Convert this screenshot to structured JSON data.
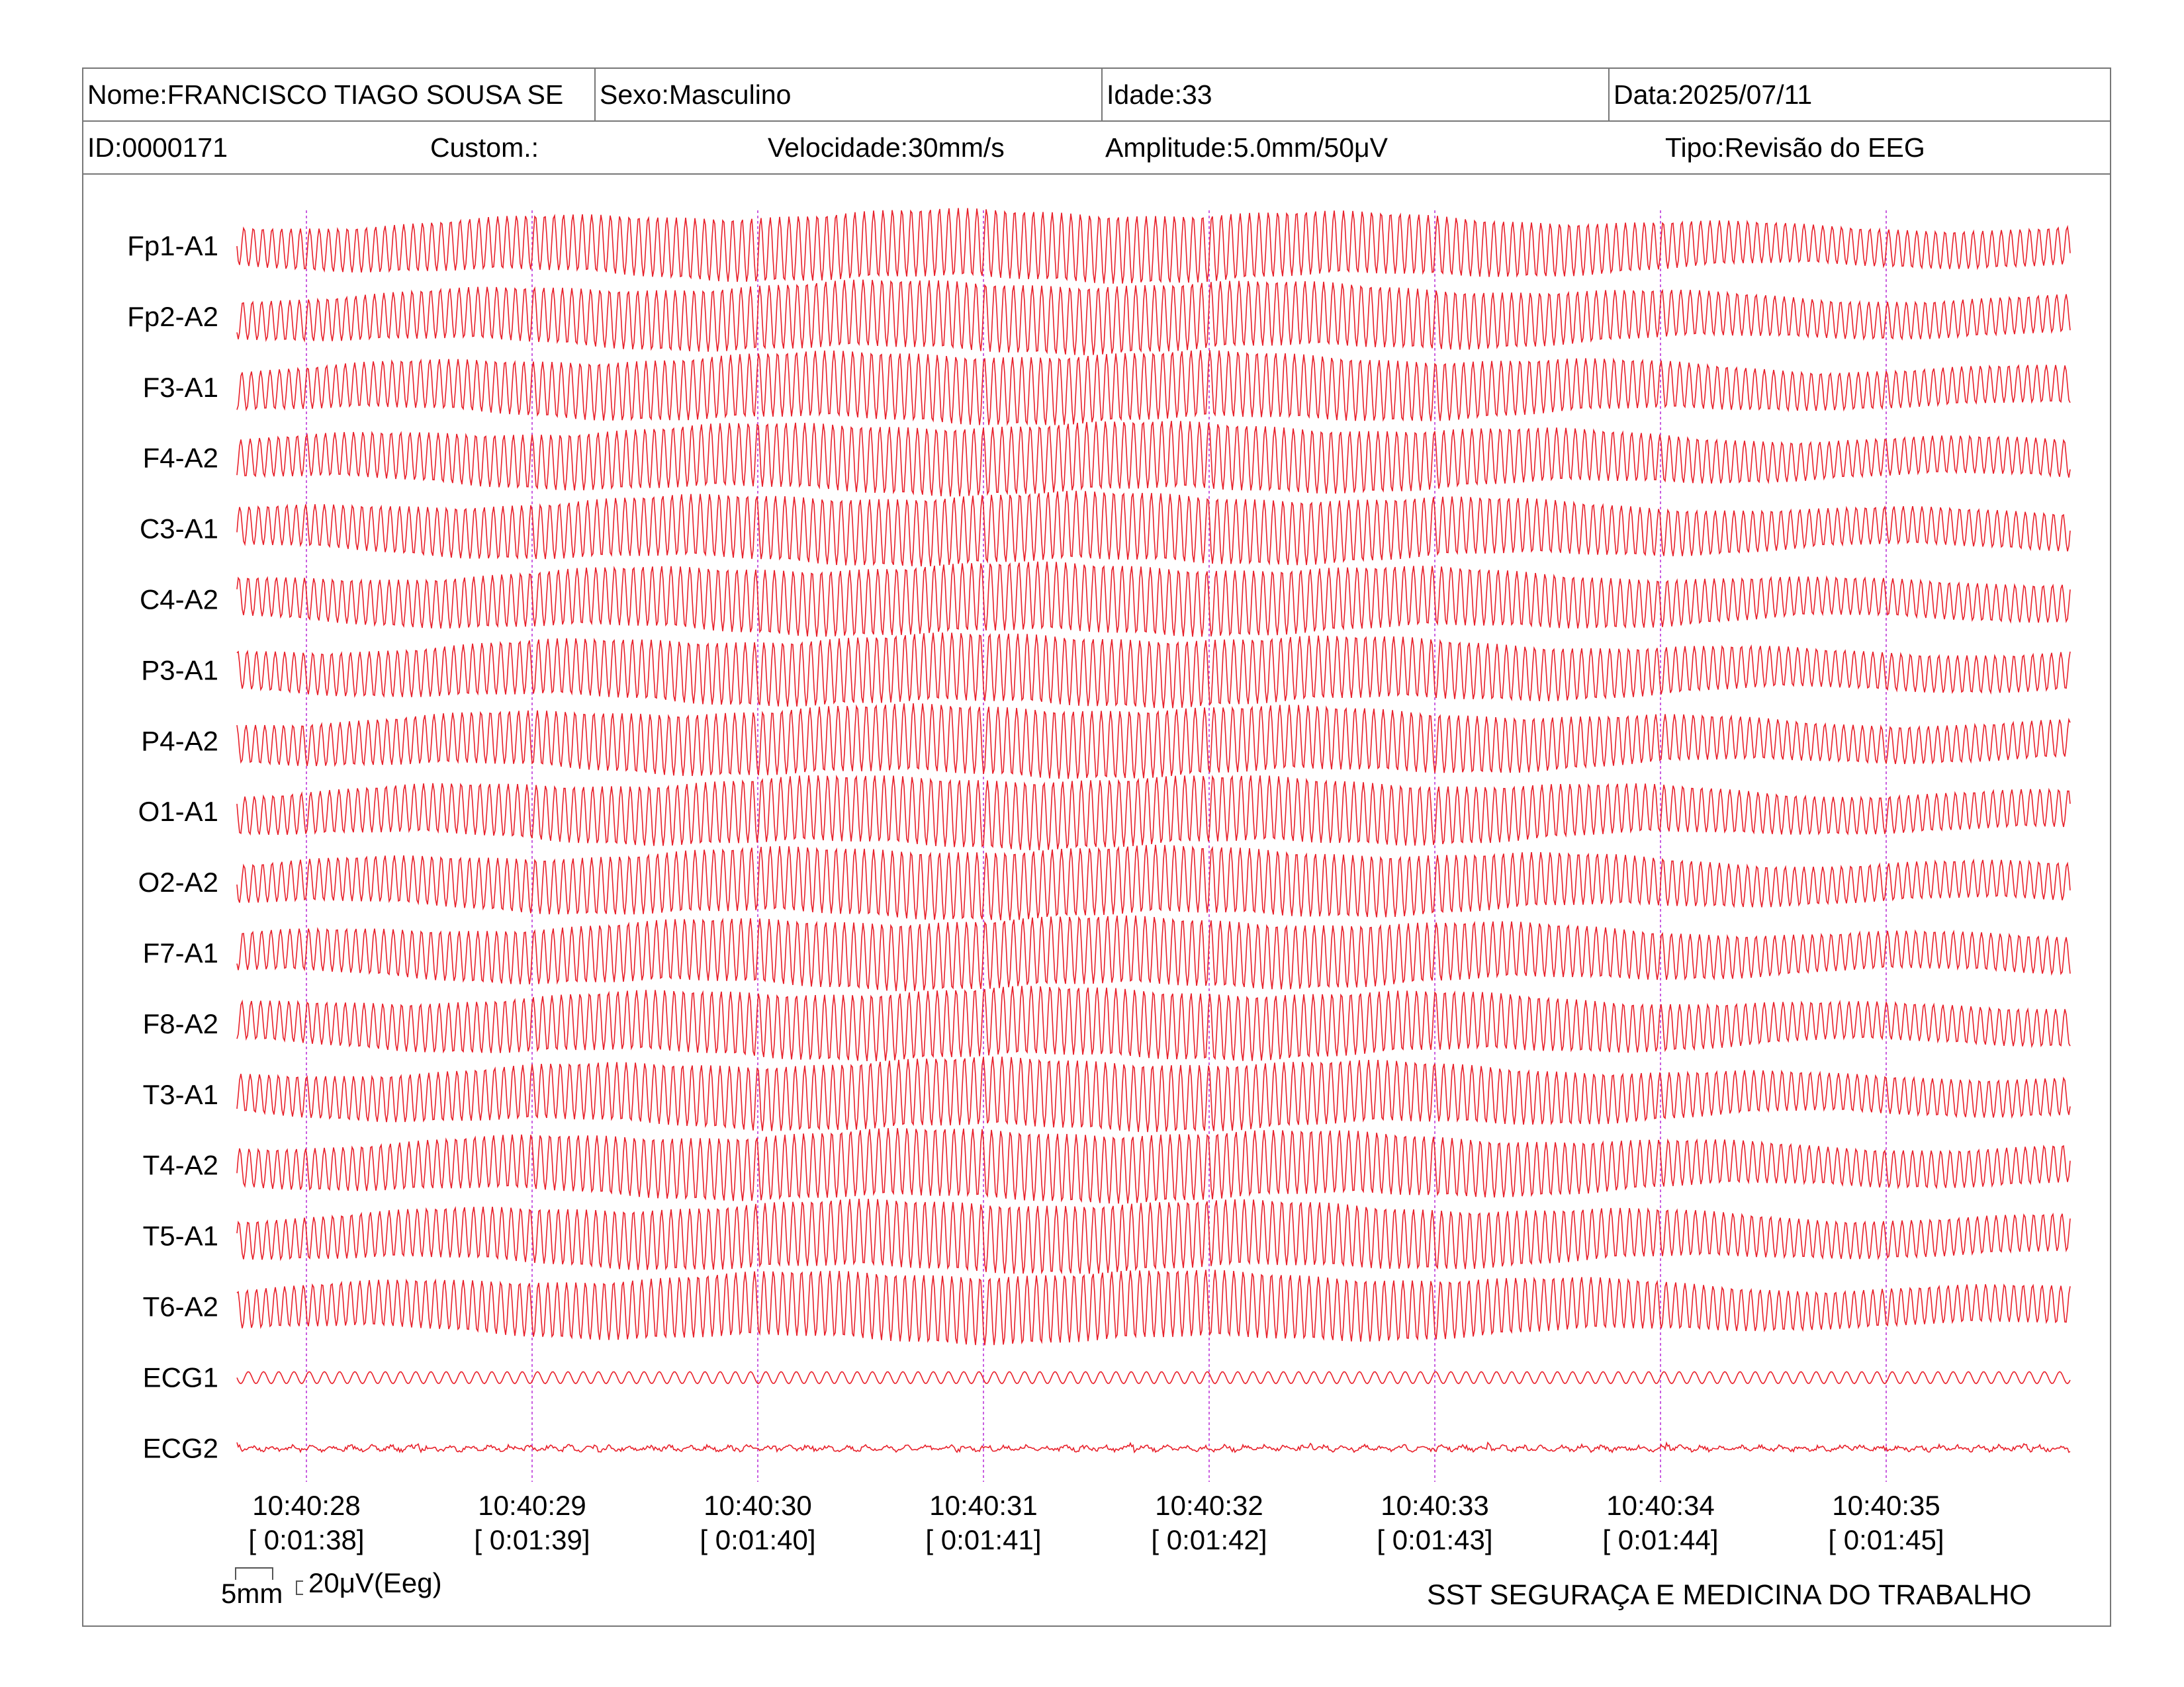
{
  "header": {
    "name": "Nome:FRANCISCO TIAGO SOUSA SE",
    "sex": "Sexo:Masculino",
    "age": "Idade:33",
    "date": "Data:2025/07/11",
    "id": "ID:0000171",
    "custom": "Custom.:",
    "speed": "Velocidade:30mm/s",
    "amplitude": "Amplitude:5.0mm/50μV",
    "type": "Tipo:Revisão do EEG"
  },
  "channels": [
    {
      "label": "Fp1-A1"
    },
    {
      "label": "Fp2-A2"
    },
    {
      "label": "F3-A1"
    },
    {
      "label": "F4-A2"
    },
    {
      "label": "C3-A1"
    },
    {
      "label": "C4-A2"
    },
    {
      "label": "P3-A1"
    },
    {
      "label": "P4-A2"
    },
    {
      "label": "O1-A1"
    },
    {
      "label": "O2-A2"
    },
    {
      "label": "F7-A1"
    },
    {
      "label": "F8-A2"
    },
    {
      "label": "T3-A1"
    },
    {
      "label": "T4-A2"
    },
    {
      "label": "T5-A1"
    },
    {
      "label": "T6-A2"
    },
    {
      "label": "ECG1"
    },
    {
      "label": "ECG2"
    }
  ],
  "time_marks": [
    {
      "clock": "10:40:28",
      "elapsed": "[ 0:01:38]"
    },
    {
      "clock": "10:40:29",
      "elapsed": "[ 0:01:39]"
    },
    {
      "clock": "10:40:30",
      "elapsed": "[ 0:01:40]"
    },
    {
      "clock": "10:40:31",
      "elapsed": "[ 0:01:41]"
    },
    {
      "clock": "10:40:32",
      "elapsed": "[ 0:01:42]"
    },
    {
      "clock": "10:40:33",
      "elapsed": "[ 0:01:43]"
    },
    {
      "clock": "10:40:34",
      "elapsed": "[ 0:01:44]"
    },
    {
      "clock": "10:40:35",
      "elapsed": "[ 0:01:45]"
    }
  ],
  "scale": {
    "time_label": "5mm",
    "amp_label": "20μV(Eeg)"
  },
  "footer": {
    "company": "SST SEGURAÇA E MEDICINA DO TRABALHO"
  },
  "colors": {
    "trace": "#e8202a",
    "marker": "#c95ee0",
    "border": "#777777"
  }
}
